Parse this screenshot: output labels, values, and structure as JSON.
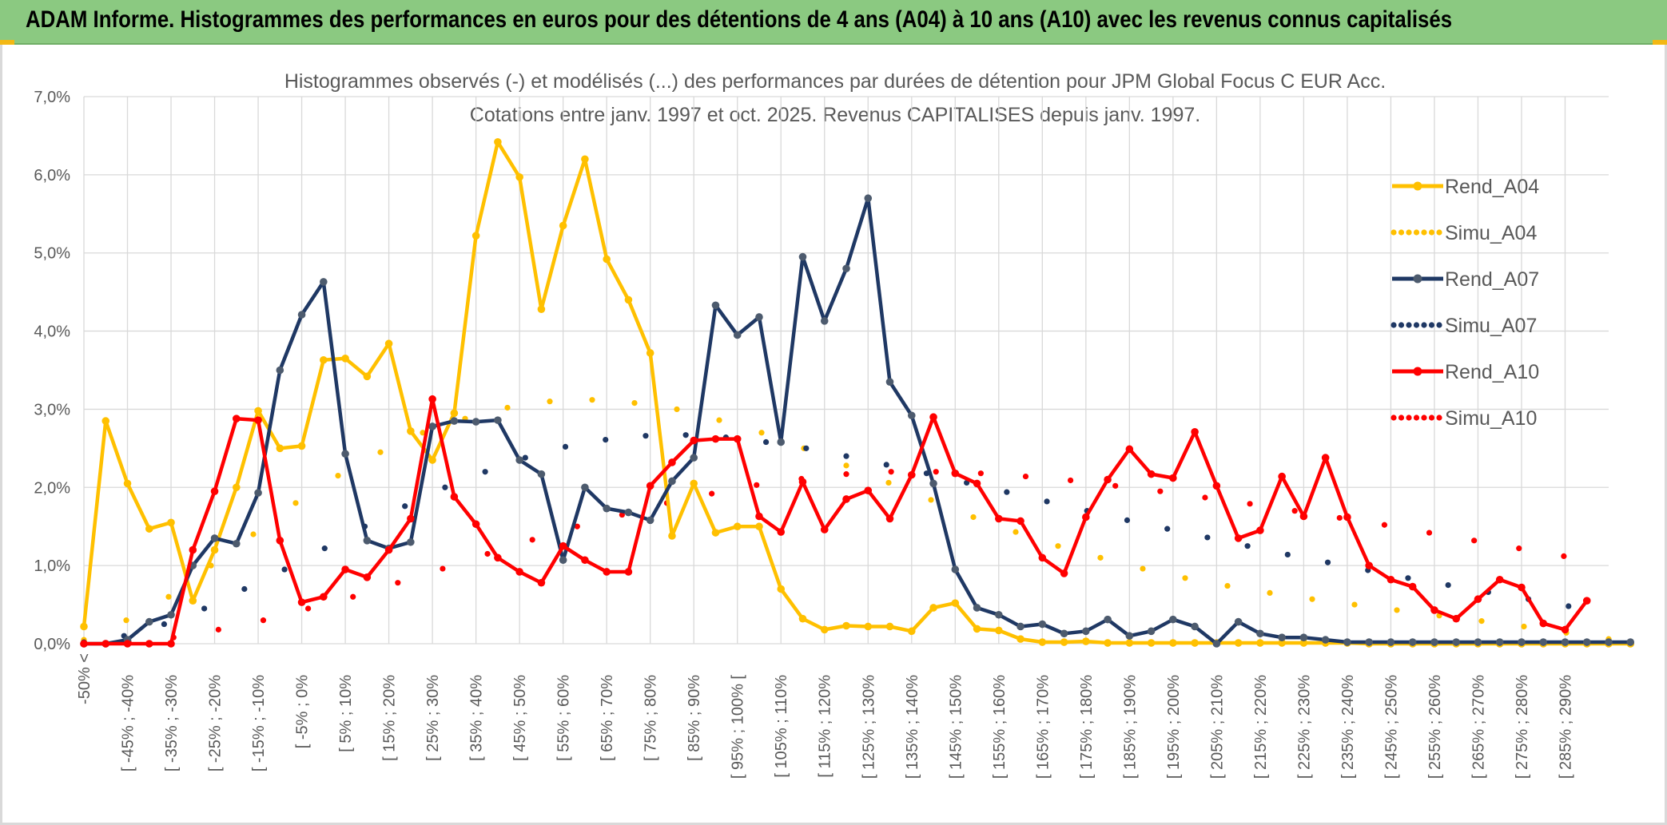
{
  "header": {
    "banner": "ADAM Informe. Histogrammes des performances en euros pour des détentions de 4 ans (A04) à 10 ans (A10) avec les revenus connus capitalisés"
  },
  "chart_data": {
    "type": "line",
    "title": "Histogrammes observés (-) et modélisés (...) des performances par durées de détention pour JPM Global Focus C EUR Acc.",
    "subtitle": "Cotations entre janv. 1997 et oct. 2025. Revenus CAPITALISES depuis janv. 1997.",
    "xlabel": "",
    "ylabel": "",
    "ylim": [
      0,
      7
    ],
    "grid": true,
    "legend_position": "right",
    "y_ticks": [
      "0,0%",
      "1,0%",
      "2,0%",
      "3,0%",
      "4,0%",
      "5,0%",
      "6,0%",
      "7,0%"
    ],
    "x_tick_labels": [
      "-50% <",
      "[ -45% ; -40%",
      "[ -35% ; -30%",
      "[ -25% ; -20%",
      "[ -15% ; -10%",
      "[ -5% ; 0%",
      "[ 5% ; 10%",
      "[ 15% ; 20%",
      "[ 25% ; 30%",
      "[ 35% ; 40%",
      "[ 45% ; 50%",
      "[ 55% ; 60%",
      "[ 65% ; 70%",
      "[ 75% ; 80%",
      "[ 85% ; 90%",
      "[ 95% ; 100% [",
      "[ 105% ; 110%",
      "[ 115% ; 120%",
      "[ 125% ; 130%",
      "[ 135% ; 140%",
      "[ 145% ; 150%",
      "[ 155% ; 160%",
      "[ 165% ; 170%",
      "[ 175% ; 180%",
      "[ 185% ; 190%",
      "[ 195% ; 200%",
      "[ 205% ; 210%",
      "[ 215% ; 220%",
      "[ 225% ; 230%",
      "[ 235% ; 240%",
      "[ 245% ; 250%",
      "[ 255% ; 260%",
      "[ 265% ; 270%",
      "[ 275% ; 280%",
      "[ 285% ; 290%"
    ],
    "series": [
      {
        "name": "Rend_A04",
        "style": "solid",
        "color": "#ffc000",
        "marker_color": "#ffc000",
        "values": [
          0.22,
          2.85,
          2.05,
          1.47,
          1.55,
          0.55,
          1.2,
          2.0,
          2.98,
          2.5,
          2.53,
          3.63,
          3.65,
          3.42,
          3.84,
          2.72,
          2.35,
          2.95,
          5.22,
          6.42,
          5.97,
          4.28,
          5.35,
          6.2,
          4.92,
          4.4,
          3.72,
          1.38,
          2.05,
          1.42,
          1.5,
          1.5,
          0.7,
          0.32,
          0.18,
          0.23,
          0.22,
          0.22,
          0.16,
          0.46,
          0.52,
          0.19,
          0.17,
          0.06,
          0.02,
          0.02,
          0.03,
          0.01,
          0.01,
          0.01,
          0.01,
          0.01,
          0.01,
          0.01,
          0.01,
          0.01,
          0.01,
          0.01,
          0.01,
          0.0,
          0.0,
          0.0,
          0.0,
          0.0,
          0.0,
          0.0,
          0.0,
          0.0,
          0.0,
          0.0,
          0.0,
          0.0
        ]
      },
      {
        "name": "Simu_A04",
        "style": "dotted",
        "color": "#ffc000",
        "values": [
          0.05,
          0.3,
          0.6,
          1.0,
          1.4,
          1.8,
          2.15,
          2.45,
          2.7,
          2.88,
          3.02,
          3.1,
          3.12,
          3.08,
          3.0,
          2.86,
          2.7,
          2.5,
          2.28,
          2.06,
          1.84,
          1.62,
          1.43,
          1.25,
          1.1,
          0.96,
          0.84,
          0.74,
          0.65,
          0.57,
          0.5,
          0.43,
          0.36,
          0.29,
          0.22,
          0.14,
          0.06
        ]
      },
      {
        "name": "Rend_A07",
        "style": "solid",
        "color": "#1f3864",
        "marker_color": "#4d5b6e",
        "values": [
          0.0,
          0.0,
          0.05,
          0.28,
          0.37,
          1.0,
          1.35,
          1.28,
          1.93,
          3.5,
          4.21,
          4.63,
          2.43,
          1.32,
          1.22,
          1.3,
          2.78,
          2.85,
          2.84,
          2.86,
          2.35,
          2.17,
          1.07,
          2.0,
          1.73,
          1.68,
          1.58,
          2.08,
          2.38,
          4.33,
          3.95,
          4.18,
          2.58,
          4.95,
          4.13,
          4.8,
          5.7,
          3.35,
          2.92,
          2.05,
          0.95,
          0.46,
          0.37,
          0.22,
          0.25,
          0.13,
          0.16,
          0.31,
          0.1,
          0.16,
          0.31,
          0.22,
          0.0,
          0.28,
          0.13,
          0.08,
          0.08,
          0.05,
          0.02,
          0.02,
          0.02,
          0.02,
          0.02,
          0.02,
          0.02,
          0.02,
          0.02,
          0.02,
          0.02,
          0.02,
          0.02,
          0.02
        ]
      },
      {
        "name": "Simu_A07",
        "style": "dotted",
        "color": "#1f3864",
        "values": [
          0.02,
          0.1,
          0.25,
          0.45,
          0.7,
          0.95,
          1.22,
          1.5,
          1.76,
          2.0,
          2.2,
          2.38,
          2.52,
          2.61,
          2.66,
          2.67,
          2.64,
          2.58,
          2.5,
          2.4,
          2.29,
          2.18,
          2.06,
          1.94,
          1.82,
          1.7,
          1.58,
          1.47,
          1.36,
          1.25,
          1.14,
          1.04,
          0.94,
          0.84,
          0.75,
          0.66,
          0.57,
          0.48,
          0.03
        ]
      },
      {
        "name": "Rend_A10",
        "style": "solid",
        "color": "#ff0000",
        "marker_color": "#ff0000",
        "values": [
          0.0,
          0.0,
          0.0,
          0.0,
          0.0,
          1.2,
          1.95,
          2.88,
          2.86,
          1.32,
          0.53,
          0.6,
          0.95,
          0.85,
          1.2,
          1.6,
          3.13,
          1.88,
          1.53,
          1.1,
          0.92,
          0.78,
          1.25,
          1.07,
          0.92,
          0.92,
          2.02,
          2.32,
          2.6,
          2.62,
          2.62,
          1.63,
          1.43,
          2.07,
          1.46,
          1.85,
          1.96,
          1.6,
          2.16,
          2.9,
          2.18,
          2.05,
          1.6,
          1.57,
          1.1,
          0.9,
          1.62,
          2.1,
          2.49,
          2.17,
          2.12,
          2.71,
          2.02,
          1.35,
          1.45,
          2.14,
          1.63,
          2.38,
          1.62,
          1.0,
          0.82,
          0.73,
          0.43,
          0.32,
          0.57,
          0.82,
          0.72,
          0.26,
          0.18,
          0.55
        ]
      },
      {
        "name": "Simu_A10",
        "style": "dotted",
        "color": "#ff0000",
        "values": [
          0.0,
          0.02,
          0.08,
          0.18,
          0.3,
          0.45,
          0.6,
          0.78,
          0.96,
          1.15,
          1.33,
          1.5,
          1.65,
          1.8,
          1.92,
          2.03,
          2.11,
          2.17,
          2.2,
          2.2,
          2.18,
          2.14,
          2.09,
          2.02,
          1.95,
          1.87,
          1.79,
          1.7,
          1.61,
          1.52,
          1.42,
          1.32,
          1.22,
          1.12,
          0.0
        ]
      }
    ]
  }
}
